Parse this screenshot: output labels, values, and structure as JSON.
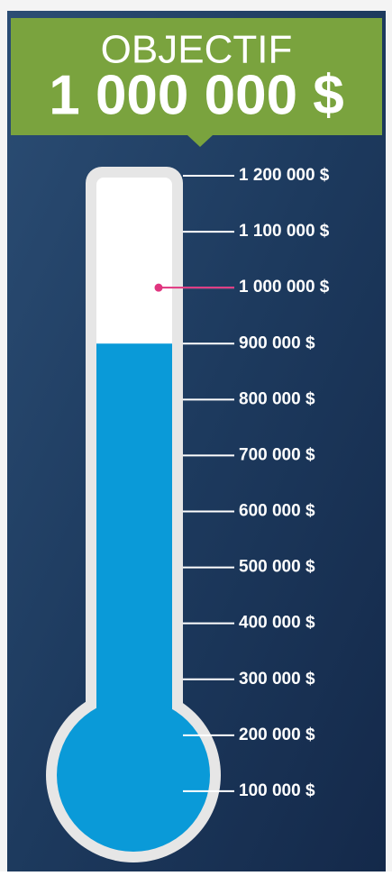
{
  "chart_data": {
    "type": "thermometer",
    "title": "OBJECTIF",
    "subtitle": "1 000 000 $",
    "value": 900000,
    "goal": 1000000,
    "color": "#0a9ad8",
    "goal_color": "#e0357f",
    "ylim": [
      0,
      1200000
    ],
    "yticks": [
      {
        "value": 100000,
        "label": "100 000 $"
      },
      {
        "value": 200000,
        "label": "200 000 $"
      },
      {
        "value": 300000,
        "label": "300 000 $"
      },
      {
        "value": 400000,
        "label": "400 000 $"
      },
      {
        "value": 500000,
        "label": "500 000 $"
      },
      {
        "value": 600000,
        "label": "600 000 $"
      },
      {
        "value": 700000,
        "label": "700 000 $"
      },
      {
        "value": 800000,
        "label": "800 000 $"
      },
      {
        "value": 900000,
        "label": "900 000 $"
      },
      {
        "value": 1000000,
        "label": "1 000 000 $"
      },
      {
        "value": 1100000,
        "label": "1 100 000 $"
      },
      {
        "value": 1200000,
        "label": "1 200 000 $"
      }
    ]
  }
}
